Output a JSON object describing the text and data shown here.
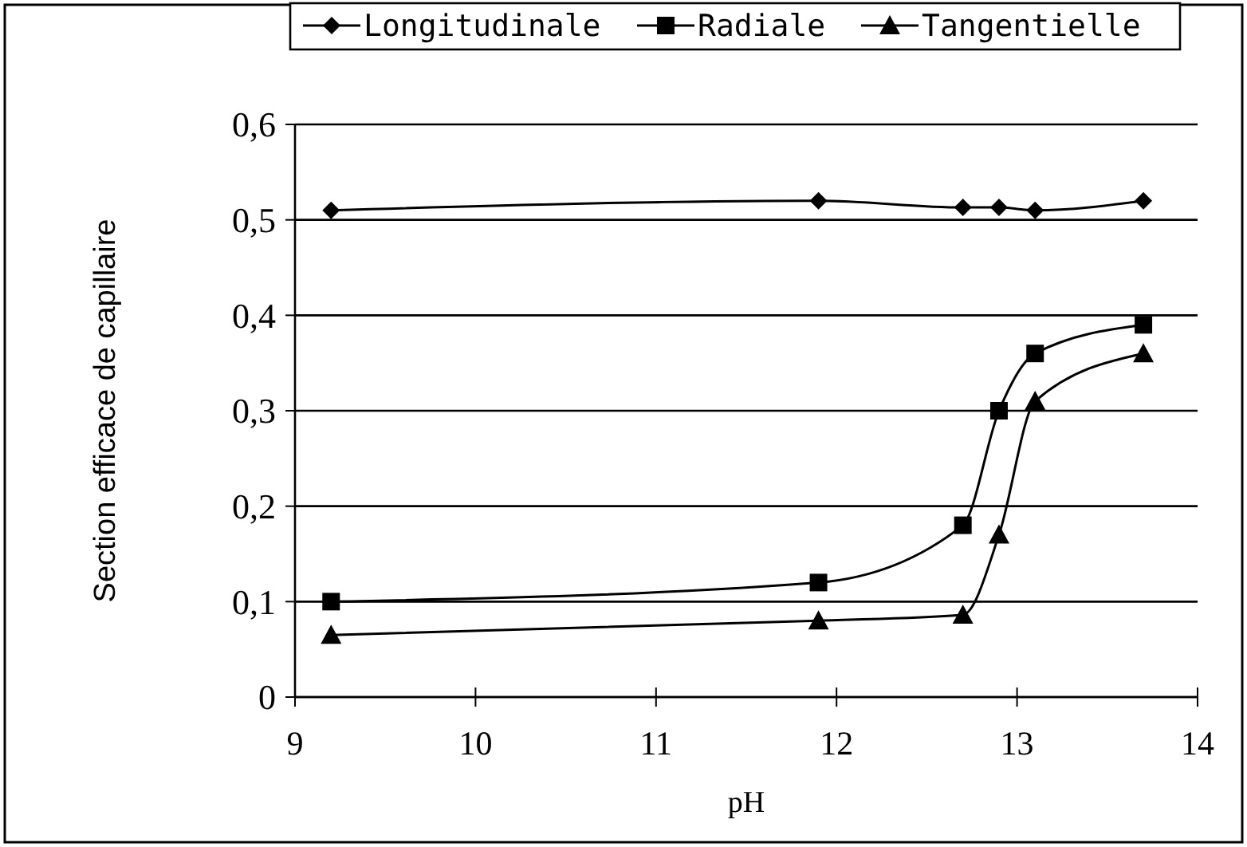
{
  "chart_data": {
    "type": "line",
    "xlabel": "pH",
    "ylabel": "Section efficace de capillaire",
    "x": [
      9.2,
      11.9,
      12.7,
      12.9,
      13.1,
      13.7
    ],
    "series": [
      {
        "name": "Longitudinale",
        "color": "#000000",
        "marker": "diamond",
        "values": [
          0.51,
          0.52,
          0.513,
          0.513,
          0.51,
          0.52
        ]
      },
      {
        "name": "Radiale",
        "color": "#000000",
        "marker": "square",
        "values": [
          0.1,
          0.12,
          0.18,
          0.3,
          0.36,
          0.39
        ]
      },
      {
        "name": "Tangentielle",
        "color": "#000000",
        "marker": "triangle",
        "values": [
          0.065,
          0.08,
          0.086,
          0.17,
          0.31,
          0.36
        ]
      }
    ],
    "xlim": [
      9,
      14
    ],
    "xticks": [
      9,
      10,
      11,
      12,
      13,
      14
    ],
    "ylim": [
      0,
      0.6
    ],
    "yticks": [
      {
        "value": 0,
        "label": "0"
      },
      {
        "value": 0.1,
        "label": "0,1"
      },
      {
        "value": 0.2,
        "label": "0,2"
      },
      {
        "value": 0.3,
        "label": "0,3"
      },
      {
        "value": 0.4,
        "label": "0,4"
      },
      {
        "value": 0.5,
        "label": "0,5"
      },
      {
        "value": 0.6,
        "label": "0,6"
      }
    ],
    "grid": "y",
    "legend": "top",
    "line_style": "solid"
  }
}
